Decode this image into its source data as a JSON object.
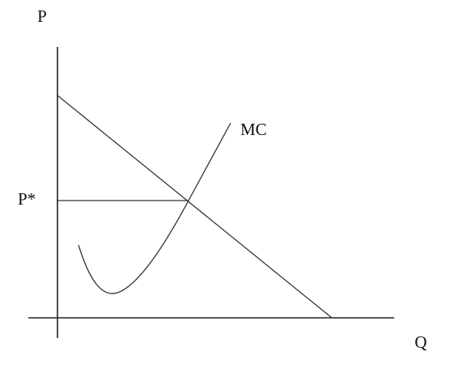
{
  "labels": {
    "y_axis": "P",
    "x_axis": "Q",
    "curve": "MC",
    "price": "P*"
  }
}
